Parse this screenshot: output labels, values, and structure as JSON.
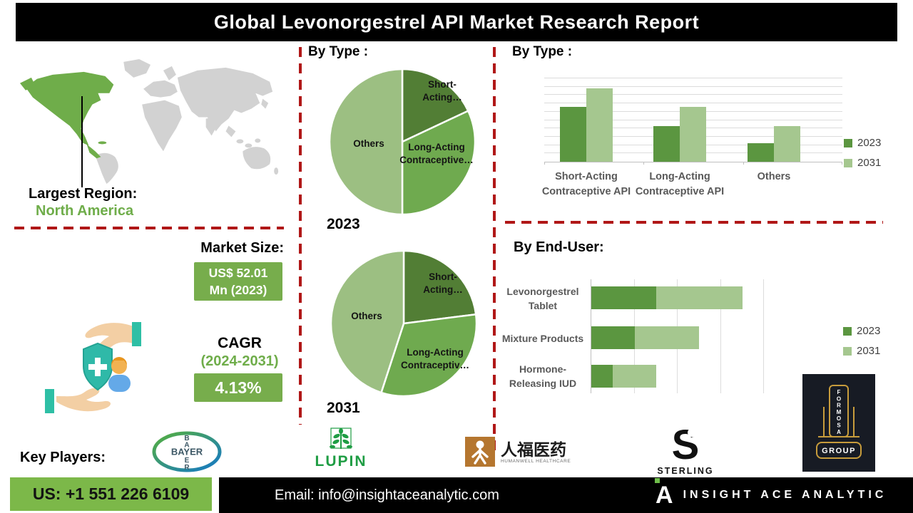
{
  "title": "Global Levonorgestrel API Market Research Report",
  "colors": {
    "dark_green": "#5b9640",
    "light_green": "#a5c78f",
    "pie_dark": "#527e35",
    "pie_mid": "#6faa4f",
    "pie_light": "#9cbf82",
    "accent_green_text": "#6fad4a",
    "green_box": "#77ad4c",
    "footer_green": "#7cb849",
    "divider_red": "#b01717",
    "map_gray": "#d2d2d2"
  },
  "map": {
    "largest_region_label": "Largest Region:",
    "largest_region_value": "North America"
  },
  "market": {
    "size_label": "Market Size:",
    "size_lines": [
      "US$ 52.01",
      "Mn (2023)"
    ],
    "cagr_label": "CAGR",
    "cagr_period": "(2024-2031)",
    "cagr_value": "4.13%"
  },
  "key_players": {
    "label": "Key Players:",
    "players": [
      "Bayer",
      "Lupin",
      "Humanwell Healthcare",
      "Sterling",
      "Formosa Group"
    ],
    "bayer_wordmark": "BAYER",
    "bayer_vertical": [
      "B",
      "A",
      "E",
      "R"
    ],
    "lupin_wordmark": "LUPIN",
    "humanwell_cjk": "人福医药",
    "humanwell_subtitle": "HUMANWELL HEALTHCARE",
    "sterling_wordmark": "STERLING",
    "sterling_initial": "S",
    "formosa_vertical": "FORMOSA",
    "formosa_group": "GROUP"
  },
  "footer": {
    "phone": "US: +1 551 226 6109",
    "email": "Email: info@insightaceanalytic.com",
    "brand": "INSIGHT ACE ANALYTIC",
    "brand_initial": "A"
  },
  "chart_data": [
    {
      "type": "pie",
      "title": "By Type :",
      "year": "2023",
      "slices": [
        {
          "label": "Short-Acting…",
          "value": 18,
          "color": "#527e35"
        },
        {
          "label": "Long-Acting Contraceptive…",
          "value": 32,
          "color": "#6faa4f"
        },
        {
          "label": "Others",
          "value": 50,
          "color": "#9cbf82"
        }
      ]
    },
    {
      "type": "pie",
      "title": "By Type :",
      "year": "2031",
      "slices": [
        {
          "label": "Short-Acting…",
          "value": 23,
          "color": "#527e35"
        },
        {
          "label": "Long-Acting Contraceptiv…",
          "value": 32,
          "color": "#6faa4f"
        },
        {
          "label": "Others",
          "value": 45,
          "color": "#9cbf82"
        }
      ]
    },
    {
      "type": "bar",
      "title": "By Type :",
      "categories": [
        "Short-Acting Contraceptive API",
        "Long-Acting Contraceptive API",
        "Others"
      ],
      "series": [
        {
          "name": "2023",
          "color": "#5b9640",
          "values": [
            6.6,
            4.3,
            2.2
          ]
        },
        {
          "name": "2031",
          "color": "#a5c78f",
          "values": [
            8.8,
            6.6,
            4.3
          ]
        }
      ],
      "ylim": [
        0,
        10
      ],
      "gridlines": 10,
      "legend_position": "right",
      "grid": true
    },
    {
      "type": "bar",
      "orientation": "horizontal",
      "stacked": true,
      "title": "By End-User:",
      "categories": [
        "Levonorgestrel Tablet",
        "Mixture Products",
        "Hormone-Releasing IUD"
      ],
      "series": [
        {
          "name": "2023",
          "color": "#5b9640",
          "values": [
            1.5,
            1.0,
            0.5
          ]
        },
        {
          "name": "2031",
          "color": "#a5c78f",
          "values": [
            2.0,
            1.5,
            1.0
          ]
        }
      ],
      "xlim": [
        0,
        4
      ],
      "legend_position": "right",
      "grid": true
    }
  ]
}
